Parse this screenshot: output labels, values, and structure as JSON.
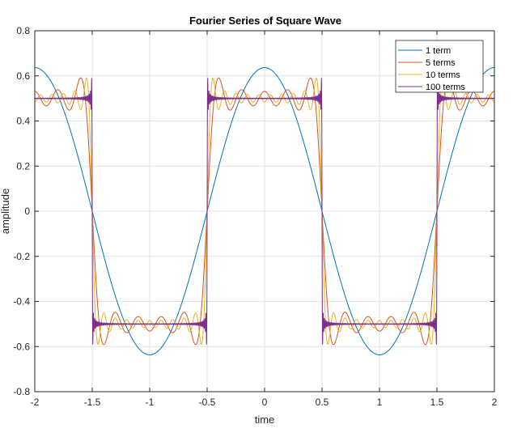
{
  "chart_data": {
    "type": "line",
    "title": "Fourier Series of Square Wave",
    "xlabel": "time",
    "ylabel": "amplitude",
    "xlim": [
      -2,
      2
    ],
    "ylim": [
      -0.8,
      0.8
    ],
    "xticks": [
      -2,
      -1.5,
      -1,
      -0.5,
      0,
      0.5,
      1,
      1.5,
      2
    ],
    "yticks": [
      -0.8,
      -0.6,
      -0.4,
      -0.2,
      0,
      0.2,
      0.4,
      0.6,
      0.8
    ],
    "xtick_labels": [
      "-2",
      "-1.5",
      "-1",
      "-0.5",
      "0",
      "0.5",
      "1",
      "1.5",
      "2"
    ],
    "ytick_labels": [
      "-0.8",
      "-0.6",
      "-0.4",
      "-0.2",
      "0",
      "0.2",
      "0.4",
      "0.6",
      "0.8"
    ],
    "grid": true,
    "legend_position": "top-right",
    "function": "square wave of amplitude 0.5 and period 2, partial sums 0.5*(4/pi)*sum_k sin((2k-1)*pi*(t+0.5))/(2k-1)",
    "amplitude": 0.5,
    "period": 2,
    "series": [
      {
        "name": "1 term",
        "terms": 1,
        "color": "#0072BD",
        "peak": 0.637
      },
      {
        "name": "5 terms",
        "terms": 5,
        "color": "#D95319",
        "peak": 0.59
      },
      {
        "name": "10 terms",
        "terms": 10,
        "color": "#EDB120",
        "peak": 0.59
      },
      {
        "name": "100 terms",
        "terms": 100,
        "color": "#7E2F8E",
        "peak": 0.59
      }
    ]
  }
}
